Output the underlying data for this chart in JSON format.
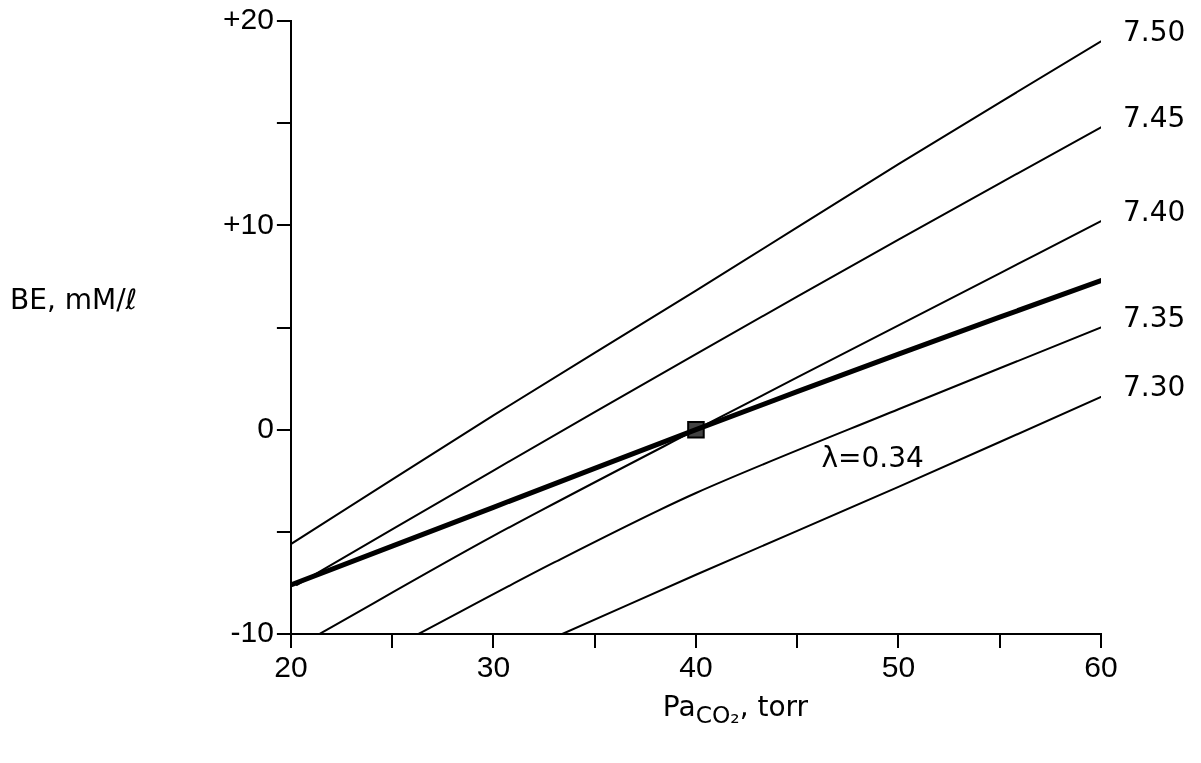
{
  "chart_data": {
    "type": "line",
    "xlabel": "Pa$_{CO₂}$, torr",
    "ylabel": "BE, mM/ℓ",
    "xlim": [
      20,
      60
    ],
    "ylim": [
      -10,
      20
    ],
    "xticks": [
      20,
      {
        "value": 25,
        "label": null
      },
      30,
      {
        "value": 35,
        "label": null
      },
      40,
      {
        "value": 45,
        "label": null
      },
      50,
      {
        "value": 55,
        "label": null
      },
      60
    ],
    "yticks": [
      {
        "value": -10,
        "label": "-10"
      },
      {
        "value": -5,
        "label": null
      },
      0,
      {
        "value": 5,
        "label": null
      },
      {
        "value": 10,
        "label": "+10"
      },
      {
        "value": 15,
        "label": null
      },
      {
        "value": 20,
        "label": "+20"
      }
    ],
    "grid": false,
    "legend": false,
    "marker": "none",
    "line_style": "solid",
    "series": [
      {
        "name": "7.50",
        "color": "#000000",
        "x": [
          20,
          30,
          40,
          50,
          60
        ],
        "values": [
          -5.6,
          0.7,
          6.8,
          13.0,
          19.0
        ]
      },
      {
        "name": "7.45",
        "color": "#000000",
        "x": [
          20.3,
          30,
          40,
          50,
          60
        ],
        "values": [
          -7.6,
          -2.0,
          3.7,
          9.3,
          14.8
        ]
      },
      {
        "name": "7.40",
        "color": "#000000",
        "x": [
          21.4,
          30,
          40,
          50,
          60
        ],
        "values": [
          -10,
          -5.2,
          0,
          5.1,
          10.2
        ]
      },
      {
        "name": "7.35",
        "color": "#000000",
        "x": [
          26.3,
          33,
          40,
          50,
          60
        ],
        "values": [
          -10,
          -6.5,
          -3.1,
          1.0,
          5.0
        ]
      },
      {
        "name": "7.30",
        "color": "#000000",
        "x": [
          33.4,
          40,
          50,
          60
        ],
        "values": [
          -10,
          -7.1,
          -2.8,
          1.6
        ]
      },
      {
        "color": "#000000",
        "x": [
          20,
          30,
          40,
          50,
          60
        ],
        "values": [
          -7.6,
          -3.8,
          0,
          3.7,
          7.3
        ]
      },
      {
        "type": "scatter",
        "marker": "square",
        "color": "#000000",
        "x": [
          40
        ],
        "values": [
          0
        ]
      }
    ],
    "annotations": [
      {
        "text": "λ=0.34",
        "x": 46,
        "y": 2.2
      }
    ]
  }
}
